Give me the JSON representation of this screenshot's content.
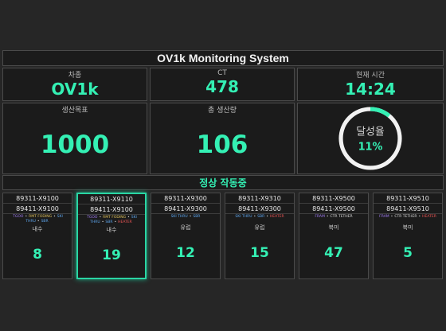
{
  "title": "OV1k Monitoring System",
  "top": {
    "model": {
      "label": "차종",
      "value": "OV1k"
    },
    "ct": {
      "label": "CT",
      "value": "478"
    },
    "time": {
      "label": "현재 시간",
      "value": "14:24"
    }
  },
  "middle": {
    "target": {
      "label": "생산목표",
      "value": "1000"
    },
    "total": {
      "label": "총 생산량",
      "value": "106"
    },
    "achievement": {
      "label": "달성율",
      "value": "11%",
      "fraction": 0.11
    }
  },
  "status": "정상 작동중",
  "colors": {
    "accent": "#34f0b4",
    "panel": "#1b1b1b",
    "border": "#4a4a4a"
  },
  "lines": [
    {
      "code1": "89311-X9100",
      "code2": "89411-X9100",
      "tags": [
        [
          "TGOO",
          "purple"
        ],
        [
          "RMT FODING",
          "yellow"
        ],
        [
          "SKI THRU",
          "blue"
        ],
        [
          "SBR",
          "blue"
        ]
      ],
      "region": "내수",
      "count": "8",
      "active": false
    },
    {
      "code1": "89311-X9110",
      "code2": "89411-X9100",
      "tags": [
        [
          "TGOO",
          "purple"
        ],
        [
          "RMT FODING",
          "yellow"
        ],
        [
          "SKI THRU",
          "blue"
        ],
        [
          "SBR",
          "blue"
        ],
        [
          "HEATER",
          "red"
        ]
      ],
      "region": "내수",
      "count": "19",
      "active": true
    },
    {
      "code1": "89311-X9300",
      "code2": "89411-X9300",
      "tags": [
        [
          "SKI THRU",
          "blue"
        ],
        [
          "SBR",
          "blue"
        ]
      ],
      "region": "유럽",
      "count": "12",
      "active": false
    },
    {
      "code1": "89311-X9310",
      "code2": "89411-X9300",
      "tags": [
        [
          "SKI THRU",
          "blue"
        ],
        [
          "SBR",
          "blue"
        ],
        [
          "HEATER",
          "red"
        ]
      ],
      "region": "유럽",
      "count": "15",
      "active": false
    },
    {
      "code1": "89311-X9500",
      "code2": "89411-X9500",
      "tags": [
        [
          "FRAM",
          "purple"
        ],
        [
          "CTR TETHER",
          "white"
        ]
      ],
      "region": "북미",
      "count": "47",
      "active": false
    },
    {
      "code1": "89311-X9510",
      "code2": "89411-X9510",
      "tags": [
        [
          "FRAM",
          "purple"
        ],
        [
          "CTR TETHER",
          "white"
        ],
        [
          "HEATER",
          "red"
        ]
      ],
      "region": "북미",
      "count": "5",
      "active": false
    }
  ]
}
